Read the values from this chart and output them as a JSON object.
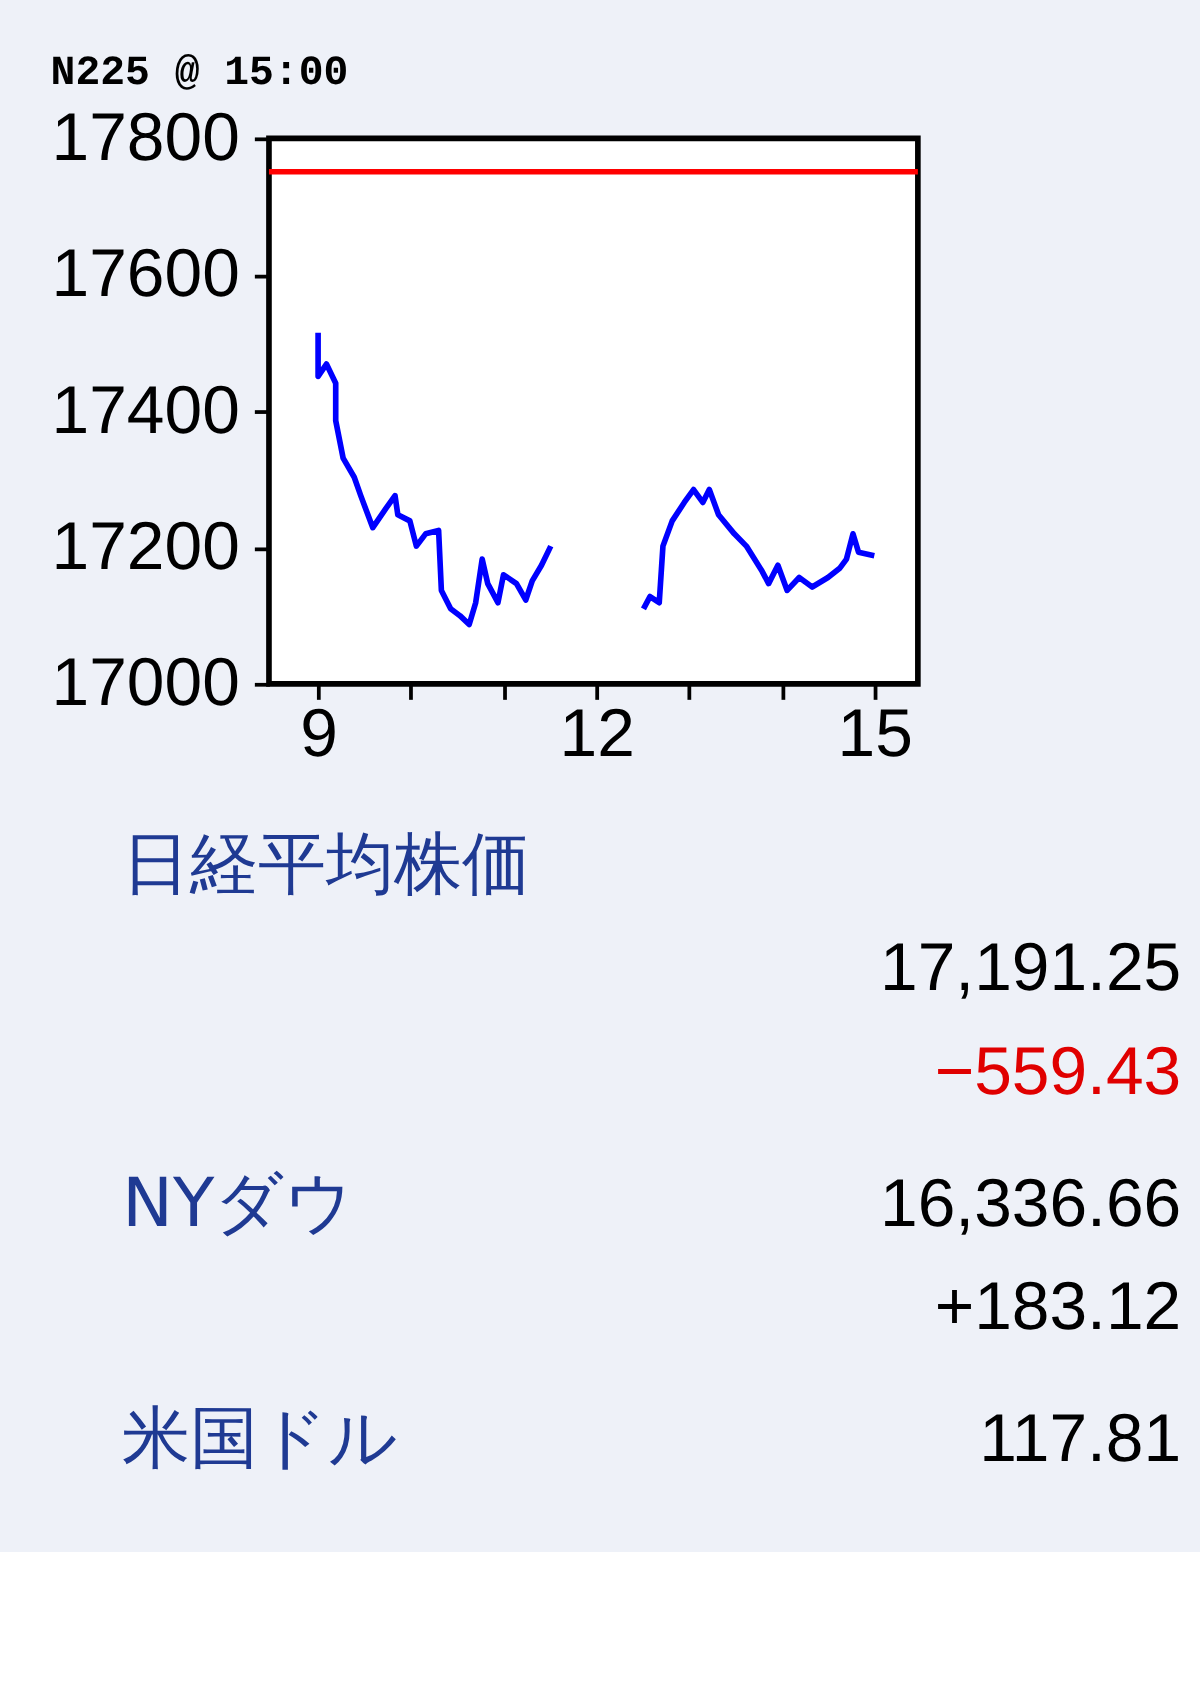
{
  "chart_data": [
    {
      "type": "line",
      "title": "N225 @ 15:00",
      "x": [
        9.0,
        9.0,
        9.09,
        9.19,
        9.19,
        9.27,
        9.39,
        9.46,
        9.59,
        9.73,
        9.83,
        9.86,
        9.99,
        10.06,
        10.16,
        10.3,
        10.33,
        10.43,
        10.53,
        10.63,
        10.7,
        10.77,
        10.83,
        10.94,
        11.0,
        11.14,
        11.24,
        11.31,
        11.41,
        11.51,
        12.0,
        12.51,
        12.58,
        12.68,
        12.72,
        12.82,
        12.95,
        13.05,
        13.15,
        13.22,
        13.32,
        13.49,
        13.62,
        13.79,
        13.86,
        13.96,
        14.06,
        14.19,
        14.33,
        14.5,
        14.63,
        14.7,
        14.77,
        14.83,
        15.0
      ],
      "series": [
        {
          "color": "#0000ff",
          "values": [
            17515,
            17451,
            17469,
            17441,
            17386,
            17331,
            17303,
            17276,
            17229,
            17257,
            17276,
            17248,
            17239,
            17202,
            17220,
            17225,
            17137,
            17110,
            17100,
            17087,
            17119,
            17183,
            17147,
            17119,
            17160,
            17147,
            17123,
            17151,
            17174,
            17202,
            null,
            17110,
            17128,
            17119,
            17202,
            17239,
            17266,
            17285,
            17266,
            17285,
            17248,
            17220,
            17202,
            17165,
            17147,
            17174,
            17137,
            17156,
            17142,
            17156,
            17170,
            17183,
            17220,
            17193,
            17188
          ]
        }
      ],
      "xlim": [
        8.47,
        15.47
      ],
      "ylim": [
        17000,
        17800
      ],
      "xticks": [
        9,
        {
          "value": 10,
          "label": null
        },
        {
          "value": 11,
          "label": null
        },
        12,
        {
          "value": 13,
          "label": null
        },
        {
          "value": 14,
          "label": null
        },
        15
      ],
      "yticks": [
        17000,
        17200,
        17400,
        17600,
        17800
      ],
      "ref_lines": [
        {
          "axis": "y",
          "value": 17751,
          "color": "#ff0000"
        }
      ],
      "grid": false,
      "marker": "none",
      "line_style": "solid"
    },
    {
      "type": "other",
      "annotations": [
        "日経平均株価",
        "17,191.25",
        "−559.43",
        "NYダウ",
        "16,336.66",
        "+183.12",
        "米国ドル",
        "117.81"
      ]
    }
  ]
}
